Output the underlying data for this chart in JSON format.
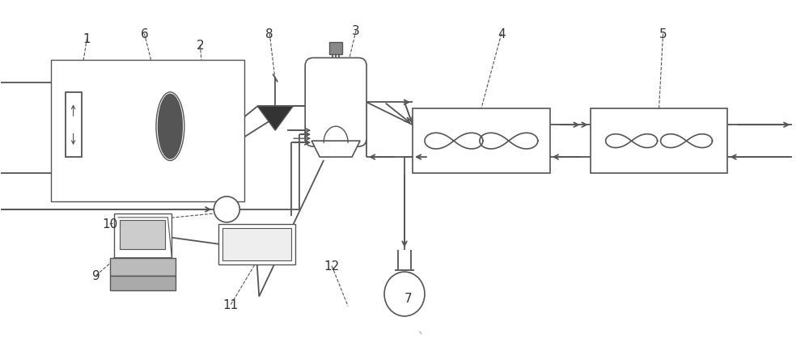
{
  "bg_color": "#ffffff",
  "line_color": "#555555",
  "label_color": "#333333",
  "fig_width": 10.0,
  "fig_height": 4.35,
  "dpi": 100
}
